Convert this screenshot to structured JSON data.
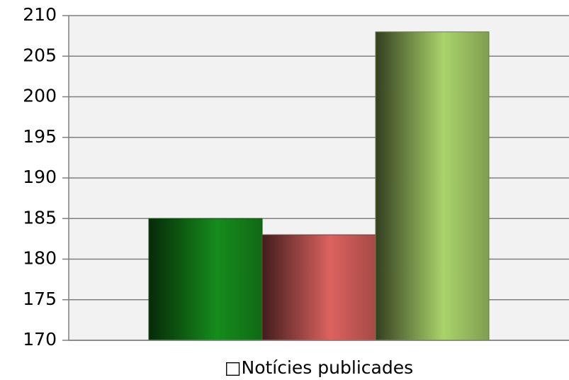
{
  "chart_data": {
    "type": "bar",
    "categories": [
      "□Notícies publicades"
    ],
    "series": [
      {
        "color": "#168c1c",
        "values": [
          185
        ]
      },
      {
        "color": "#dc625f",
        "values": [
          183
        ]
      },
      {
        "color": "#aad36b",
        "values": [
          208
        ]
      }
    ],
    "ylim": [
      170,
      210
    ],
    "yticks": [
      170,
      175,
      180,
      185,
      190,
      195,
      200,
      205,
      210
    ],
    "grid": true
  }
}
